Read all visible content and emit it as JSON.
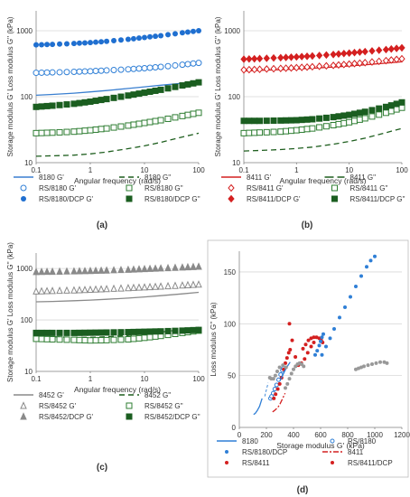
{
  "panels": [
    {
      "id": "a",
      "label": "(a)",
      "ylabel": "Storage modulus G' Loss modulus G'' (kPa)",
      "xlabel": "Angular frequency (rad/s)",
      "x_ticks": [
        "0.1",
        "1",
        "10",
        "100"
      ],
      "y_ticks": [
        "10",
        "100",
        "1000"
      ],
      "legend": [
        {
          "text": "8180 G'",
          "kind": "line",
          "color": "#3a7fd0",
          "dash": ""
        },
        {
          "text": "8180 G''",
          "kind": "line",
          "color": "#1f5f1f",
          "dash": "6,4"
        },
        {
          "text": "RS/8180 G'",
          "kind": "open-circle",
          "color": "#2f7fd6"
        },
        {
          "text": "RS/8180 G''",
          "kind": "open-square",
          "color": "#2e7d32"
        },
        {
          "text": "RS/8180/DCP G'",
          "kind": "filled-circle",
          "color": "#1f6fd0"
        },
        {
          "text": "RS/8180/DCP G''",
          "kind": "filled-square",
          "color": "#1b5e20"
        }
      ]
    },
    {
      "id": "b",
      "label": "(b)",
      "ylabel": "Storage modulus G' Loss modulus G'' (kPa)",
      "xlabel": "Angular frequency (rad/s)",
      "x_ticks": [
        "0.1",
        "1",
        "10",
        "100"
      ],
      "y_ticks": [
        "10",
        "100",
        "1000"
      ],
      "legend": [
        {
          "text": "8411 G'",
          "kind": "line",
          "color": "#d42020",
          "dash": ""
        },
        {
          "text": "8411 G''",
          "kind": "line",
          "color": "#1f5f1f",
          "dash": "10,4"
        },
        {
          "text": "RS/8411 G'",
          "kind": "open-diamond",
          "color": "#d42020"
        },
        {
          "text": "RS/8411 G''",
          "kind": "open-square",
          "color": "#2e7d32"
        },
        {
          "text": "RS/8411/DCP G'",
          "kind": "filled-diamond",
          "color": "#d42020"
        },
        {
          "text": "RS/8411/DCP G''",
          "kind": "filled-square",
          "color": "#1b5e20"
        }
      ]
    },
    {
      "id": "c",
      "label": "(c)",
      "ylabel": "Storage modulus G' Loss modulus G'' (kPa)",
      "xlabel": "Angular frequency (rad/s)",
      "x_ticks": [
        "0.1",
        "1",
        "10",
        "100"
      ],
      "y_ticks": [
        "10",
        "100",
        "1000"
      ],
      "legend": [
        {
          "text": "8452 G'",
          "kind": "line",
          "color": "#8a8a8a",
          "dash": ""
        },
        {
          "text": "8452 G''",
          "kind": "line",
          "color": "#1f5f1f",
          "dash": "6,4"
        },
        {
          "text": "RS/8452 G'",
          "kind": "open-triangle",
          "color": "#8a8a8a"
        },
        {
          "text": "RS/8452 G''",
          "kind": "open-square",
          "color": "#2e7d32"
        },
        {
          "text": "RS/8452/DCP G'",
          "kind": "filled-triangle",
          "color": "#8a8a8a"
        },
        {
          "text": "RS/8452/DCP G''",
          "kind": "filled-square",
          "color": "#1b5e20"
        }
      ]
    },
    {
      "id": "d",
      "label": "(d)",
      "ylabel": "Loss modulus G'' (kPa)",
      "xlabel": "Storage modulus G' (kPa)",
      "x_ticks": [
        "0",
        "200",
        "400",
        "600",
        "800",
        "1000",
        "1200"
      ],
      "y_ticks": [
        "0",
        "50",
        "100",
        "150"
      ],
      "legend": [
        {
          "text": "8180",
          "kind": "line",
          "color": "#2f7fd6",
          "dash": ""
        },
        {
          "text": "RS/8180",
          "kind": "open-circle-small",
          "color": "#2f7fd6"
        },
        {
          "text": "RS/8180/DCP",
          "kind": "filled-circle-small",
          "color": "#2f7fd6"
        },
        {
          "text": "8411",
          "kind": "line",
          "color": "#d42020",
          "dash": "6,2,2,2"
        },
        {
          "text": "RS/8411",
          "kind": "filled-circle-small",
          "color": "#d42020"
        },
        {
          "text": "RS/8411/DCP",
          "kind": "filled-circle-small",
          "color": "#d42020"
        }
      ]
    }
  ],
  "chart_data": [
    {
      "type": "line",
      "panel": "a",
      "xlabel": "Angular frequency (rad/s)",
      "ylabel": "Storage modulus G' Loss modulus G'' (kPa)",
      "x_scale": "log",
      "y_scale": "log",
      "xlim": [
        0.1,
        100
      ],
      "ylim": [
        10,
        2000
      ],
      "grid": "horizontal",
      "x": [
        0.1,
        0.2,
        0.5,
        1,
        2,
        5,
        10,
        20,
        50,
        100
      ],
      "series": [
        {
          "name": "8180 G'",
          "style": "line",
          "color": "#3a7fd0",
          "values": [
            105,
            108,
            113,
            118,
            124,
            133,
            141,
            149,
            160,
            168
          ]
        },
        {
          "name": "8180 G''",
          "style": "dash",
          "color": "#1f5f1f",
          "values": [
            12.5,
            12.7,
            13,
            13.6,
            14.5,
            16.3,
            18,
            20.3,
            24.5,
            28
          ]
        },
        {
          "name": "RS/8180 G'",
          "style": "open-circle",
          "color": "#2f7fd6",
          "values": [
            230,
            233,
            238,
            243,
            250,
            260,
            270,
            283,
            305,
            325
          ]
        },
        {
          "name": "RS/8180 G''",
          "style": "open-square",
          "color": "#2e7d32",
          "values": [
            28,
            28.5,
            29.5,
            31,
            33,
            36.5,
            40,
            44,
            51,
            57
          ]
        },
        {
          "name": "RS/8180/DCP G'",
          "style": "filled-circle",
          "color": "#1f6fd0",
          "values": [
            610,
            620,
            640,
            660,
            690,
            740,
            790,
            840,
            930,
            1000
          ]
        },
        {
          "name": "RS/8180/DCP G''",
          "style": "filled-square",
          "color": "#1b5e20",
          "values": [
            70,
            73,
            78,
            84,
            92,
            104,
            115,
            127,
            148,
            165
          ]
        }
      ]
    },
    {
      "type": "line",
      "panel": "b",
      "xlabel": "Angular frequency (rad/s)",
      "ylabel": "Storage modulus G' Loss modulus G'' (kPa)",
      "x_scale": "log",
      "y_scale": "log",
      "xlim": [
        0.1,
        100
      ],
      "ylim": [
        10,
        2000
      ],
      "grid": "horizontal",
      "x": [
        0.1,
        0.2,
        0.5,
        1,
        2,
        5,
        10,
        20,
        50,
        100
      ],
      "series": [
        {
          "name": "8411 G'",
          "style": "line",
          "color": "#d42020",
          "values": [
            245,
            250,
            257,
            263,
            270,
            281,
            292,
            304,
            322,
            338
          ]
        },
        {
          "name": "8411 G''",
          "style": "dash",
          "color": "#1f5f1f",
          "values": [
            15,
            15.3,
            15.8,
            16.4,
            17.2,
            19,
            21,
            23.5,
            28.5,
            33
          ]
        },
        {
          "name": "RS/8411 G'",
          "style": "open-diamond",
          "color": "#d42020",
          "values": [
            255,
            260,
            268,
            275,
            284,
            298,
            312,
            328,
            352,
            375
          ]
        },
        {
          "name": "RS/8411 G''",
          "style": "open-square",
          "color": "#2e7d32",
          "values": [
            28,
            28.6,
            29.5,
            31,
            33,
            37,
            41,
            47,
            57,
            68
          ]
        },
        {
          "name": "RS/8411/DCP G'",
          "style": "filled-diamond",
          "color": "#d42020",
          "values": [
            370,
            378,
            390,
            400,
            414,
            436,
            458,
            482,
            518,
            550
          ]
        },
        {
          "name": "RS/8411/DCP G''",
          "style": "filled-square",
          "color": "#1b5e20",
          "values": [
            43,
            43,
            43.5,
            44,
            45.5,
            49,
            53,
            59,
            70,
            82
          ]
        }
      ]
    },
    {
      "type": "line",
      "panel": "c",
      "xlabel": "Angular frequency (rad/s)",
      "ylabel": "Storage modulus G' Loss modulus G'' (kPa)",
      "x_scale": "log",
      "y_scale": "log",
      "xlim": [
        0.1,
        100
      ],
      "ylim": [
        10,
        2000
      ],
      "grid": "horizontal",
      "x": [
        0.1,
        0.2,
        0.5,
        1,
        2,
        5,
        10,
        20,
        50,
        100
      ],
      "series": [
        {
          "name": "8452 G'",
          "style": "line",
          "color": "#8a8a8a",
          "values": [
            225,
            229,
            236,
            243,
            252,
            266,
            280,
            297,
            322,
            345
          ]
        },
        {
          "name": "8452 G''",
          "style": "dash",
          "color": "#1f5f1f",
          "values": [
            48,
            47,
            46,
            46,
            47,
            50,
            54,
            58,
            65,
            72
          ]
        },
        {
          "name": "RS/8452 G'",
          "style": "open-triangle",
          "color": "#8a8a8a",
          "values": [
            360,
            368,
            378,
            388,
            400,
            418,
            432,
            448,
            470,
            490
          ]
        },
        {
          "name": "RS/8452 G''",
          "style": "open-square",
          "color": "#2e7d32",
          "values": [
            43,
            42,
            41,
            40,
            40.5,
            42,
            45,
            49,
            56,
            62
          ]
        },
        {
          "name": "RS/8452/DCP G'",
          "style": "filled-triangle",
          "color": "#8a8a8a",
          "values": [
            860,
            870,
            885,
            900,
            920,
            950,
            980,
            1010,
            1050,
            1090
          ]
        },
        {
          "name": "RS/8452/DCP G''",
          "style": "filled-square",
          "color": "#1b5e20",
          "values": [
            56,
            56,
            56,
            56.5,
            57,
            58,
            59,
            60,
            62,
            64
          ]
        }
      ]
    },
    {
      "type": "scatter",
      "panel": "d",
      "xlabel": "Storage modulus G' (kPa)",
      "ylabel": "Loss modulus G'' (kPa)",
      "xlim": [
        0,
        1200
      ],
      "ylim": [
        0,
        170
      ],
      "grid": "horizontal",
      "series": [
        {
          "name": "8180",
          "style": "line",
          "color": "#2f7fd6",
          "x": [
            105,
            118,
            133,
            149,
            168
          ],
          "y": [
            12.5,
            13.6,
            16.3,
            20.3,
            28
          ]
        },
        {
          "name": "RS/8180",
          "style": "open-circle-small",
          "color": "#2f7fd6",
          "x": [
            230,
            238,
            250,
            262,
            275,
            290,
            305,
            318,
            325
          ],
          "y": [
            28,
            30,
            33,
            37,
            41,
            46,
            51,
            55,
            57
          ]
        },
        {
          "name": "RS/8180/DCP",
          "style": "filled-circle-small",
          "color": "#2f7fd6",
          "x": [
            610,
            640,
            670,
            700,
            740,
            780,
            820,
            860,
            900,
            940,
            970,
            1000
          ],
          "y": [
            70,
            78,
            86,
            95,
            106,
            116,
            126,
            136,
            146,
            155,
            161,
            165
          ]
        },
        {
          "name": "8411",
          "style": "dashdot",
          "color": "#d42020",
          "x": [
            245,
            257,
            270,
            285,
            300,
            320,
            338
          ],
          "y": [
            15,
            16,
            17.5,
            19.5,
            22.5,
            28,
            33
          ]
        },
        {
          "name": "RS/8411",
          "style": "filled-circle-small",
          "color": "#d42020",
          "x": [
            255,
            268,
            284,
            298,
            312,
            328,
            340,
            352,
            365,
            375
          ],
          "y": [
            28,
            32,
            37,
            42,
            48,
            56,
            62,
            67,
            72,
            75
          ]
        },
        {
          "name": "RS/8411/DCP",
          "style": "filled-circle-small",
          "color": "#d42020",
          "x": [
            370,
            390,
            414,
            436,
            458,
            482,
            505,
            530,
            550
          ],
          "y": [
            100,
            84,
            68,
            60,
            62,
            66,
            72,
            78,
            82
          ]
        },
        {
          "name": "",
          "style": "line",
          "color": "#2f7fd6",
          "x": [
            300,
            315,
            330,
            345,
            360,
            375
          ],
          "y": [
            45,
            49,
            53,
            57,
            60,
            63
          ]
        },
        {
          "name": "",
          "style": "dash-thin",
          "color": "#2f7fd6",
          "x": [
            188,
            195,
            205,
            212
          ],
          "y": [
            30,
            34,
            39,
            43
          ]
        },
        {
          "name": "",
          "style": "filled-circle-small",
          "color": "#d42020",
          "x": [
            470,
            490,
            510,
            530,
            550,
            570,
            590,
            605,
            615
          ],
          "y": [
            76,
            80,
            84,
            86,
            87,
            87,
            86,
            84,
            82
          ]
        },
        {
          "name": "",
          "style": "filled-circle-small",
          "color": "#2f7fd6",
          "x": [
            560,
            575,
            590,
            600,
            610,
            620
          ],
          "y": [
            70,
            74,
            79,
            83,
            87,
            90
          ]
        },
        {
          "name": "",
          "style": "filled-circle-small",
          "color": "#999999",
          "x": [
            340,
            355,
            370,
            385,
            400,
            415,
            430,
            445,
            460,
            475
          ],
          "y": [
            38,
            42,
            47,
            52,
            56,
            59,
            61,
            62,
            61,
            59
          ]
        },
        {
          "name": "",
          "style": "filled-circle-small",
          "color": "#999999",
          "x": [
            860,
            880,
            900,
            920,
            950,
            980,
            1010,
            1040,
            1070,
            1090
          ],
          "y": [
            56,
            57,
            58,
            59,
            60,
            61,
            62,
            63,
            63,
            62
          ]
        },
        {
          "name": "",
          "style": "filled-circle-small",
          "color": "#999999",
          "x": [
            225,
            236,
            252,
            266,
            280,
            297,
            322,
            345
          ],
          "y": [
            48,
            47,
            47,
            50,
            54,
            58,
            60,
            58
          ]
        }
      ]
    }
  ]
}
